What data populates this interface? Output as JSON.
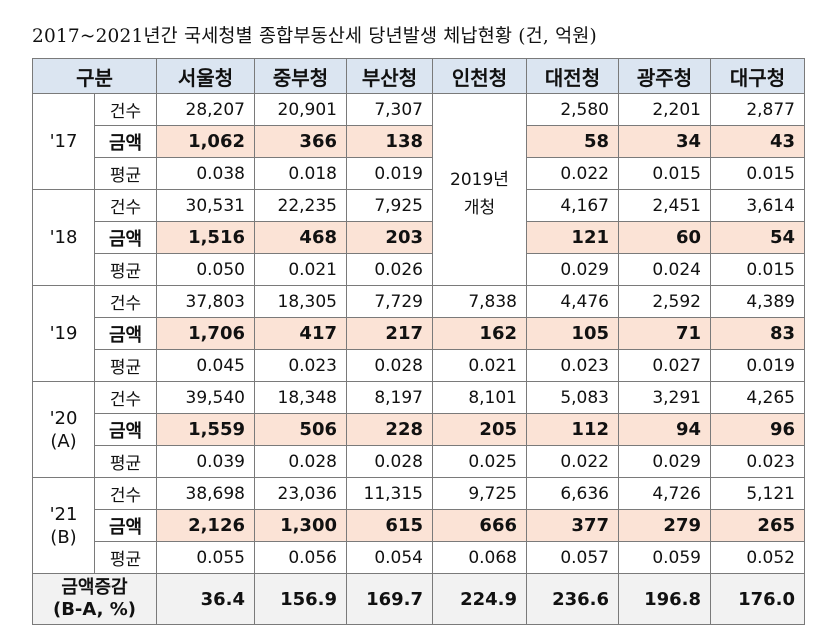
{
  "title": "2017~2021년간 국세청별 종합부동산세 당년발생 체납현황 (건, 억원)",
  "header": {
    "group": "구분",
    "offices": [
      "서울청",
      "중부청",
      "부산청",
      "인천청",
      "대전청",
      "광주청",
      "대구청"
    ]
  },
  "labels": {
    "count": "건수",
    "amount": "금액",
    "average": "평균"
  },
  "incheon_note": [
    "2019년",
    "개청"
  ],
  "years": [
    {
      "label": [
        "'17"
      ],
      "count": [
        "28,207",
        "20,901",
        "7,307",
        "",
        "2,580",
        "2,201",
        "2,877"
      ],
      "amount": [
        "1,062",
        "366",
        "138",
        "",
        "58",
        "34",
        "43"
      ],
      "average": [
        "0.038",
        "0.018",
        "0.019",
        "",
        "0.022",
        "0.015",
        "0.015"
      ]
    },
    {
      "label": [
        "'18"
      ],
      "count": [
        "30,531",
        "22,235",
        "7,925",
        "",
        "4,167",
        "2,451",
        "3,614"
      ],
      "amount": [
        "1,516",
        "468",
        "203",
        "",
        "121",
        "60",
        "54"
      ],
      "average": [
        "0.050",
        "0.021",
        "0.026",
        "",
        "0.029",
        "0.024",
        "0.015"
      ]
    },
    {
      "label": [
        "'19"
      ],
      "count": [
        "37,803",
        "18,305",
        "7,729",
        "7,838",
        "4,476",
        "2,592",
        "4,389"
      ],
      "amount": [
        "1,706",
        "417",
        "217",
        "162",
        "105",
        "71",
        "83"
      ],
      "average": [
        "0.045",
        "0.023",
        "0.028",
        "0.021",
        "0.023",
        "0.027",
        "0.019"
      ]
    },
    {
      "label": [
        "'20",
        "(A)"
      ],
      "count": [
        "39,540",
        "18,348",
        "8,197",
        "8,101",
        "5,083",
        "3,291",
        "4,265"
      ],
      "amount": [
        "1,559",
        "506",
        "228",
        "205",
        "112",
        "94",
        "96"
      ],
      "average": [
        "0.039",
        "0.028",
        "0.028",
        "0.025",
        "0.022",
        "0.029",
        "0.023"
      ]
    },
    {
      "label": [
        "'21",
        "(B)"
      ],
      "count": [
        "38,698",
        "23,036",
        "11,315",
        "9,725",
        "6,636",
        "4,726",
        "5,121"
      ],
      "amount": [
        "2,126",
        "1,300",
        "615",
        "666",
        "377",
        "279",
        "265"
      ],
      "average": [
        "0.055",
        "0.056",
        "0.054",
        "0.068",
        "0.057",
        "0.059",
        "0.052"
      ]
    }
  ],
  "total": {
    "label": [
      "금액증감",
      "(B-A, %)"
    ],
    "values": [
      "36.4",
      "156.9",
      "169.7",
      "224.9",
      "236.6",
      "196.8",
      "176.0"
    ]
  },
  "colors": {
    "header_bg": "#dbe5f1",
    "amount_bg": "#fbe3d6",
    "total_bg": "#f2f2f2"
  }
}
